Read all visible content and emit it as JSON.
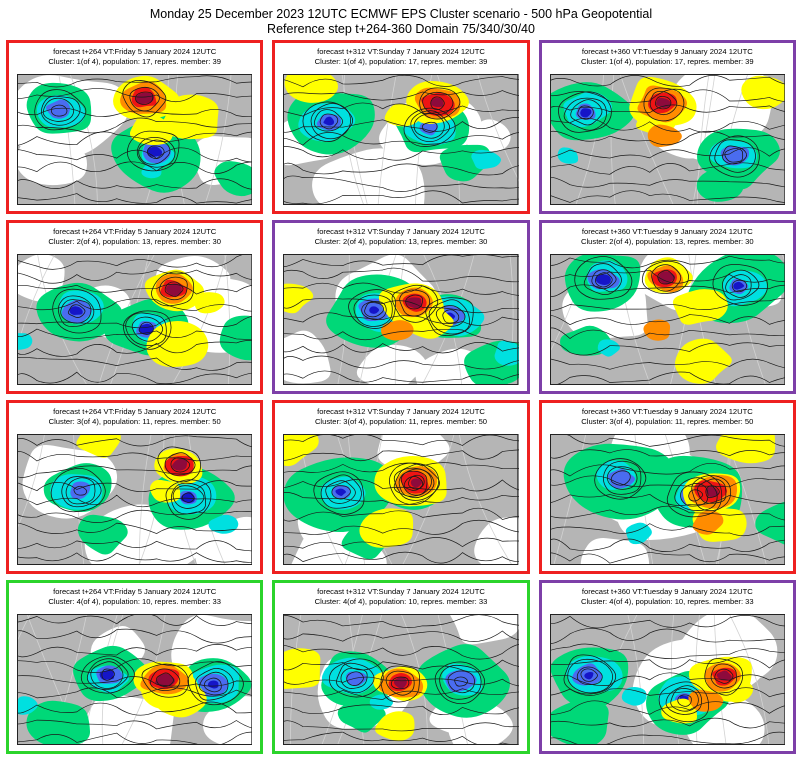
{
  "title": {
    "line1": "Monday 25 December 2023 12UTC ECMWF EPS Cluster scenario - 500 hPa Geopotential",
    "line2": "Reference step t+264-360 Domain 75/340/30/40"
  },
  "panels": [
    {
      "forecast_line": "forecast t+264 VT:Friday 5 January 2024 12UTC",
      "cluster_line": "Cluster: 1(of 4), population: 17, repres. member: 39",
      "border_color": "#ee2020"
    },
    {
      "forecast_line": "forecast t+312 VT:Sunday 7 January 2024 12UTC",
      "cluster_line": "Cluster: 1(of 4), population: 17, repres. member: 39",
      "border_color": "#ee2020"
    },
    {
      "forecast_line": "forecast t+360 VT:Tuesday 9 January 2024 12UTC",
      "cluster_line": "Cluster: 1(of 4), population: 17, repres. member: 39",
      "border_color": "#7d3fa8"
    },
    {
      "forecast_line": "forecast t+264 VT:Friday 5 January 2024 12UTC",
      "cluster_line": "Cluster: 2(of 4), population: 13, repres. member: 30",
      "border_color": "#ee2020"
    },
    {
      "forecast_line": "forecast t+312 VT:Sunday 7 January 2024 12UTC",
      "cluster_line": "Cluster: 2(of 4), population: 13, repres. member: 30",
      "border_color": "#7d3fa8"
    },
    {
      "forecast_line": "forecast t+360 VT:Tuesday 9 January 2024 12UTC",
      "cluster_line": "Cluster: 2(of 4), population: 13, repres. member: 30",
      "border_color": "#7d3fa8"
    },
    {
      "forecast_line": "forecast t+264 VT:Friday 5 January 2024 12UTC",
      "cluster_line": "Cluster: 3(of 4), population: 11, repres. member: 50",
      "border_color": "#ee2020"
    },
    {
      "forecast_line": "forecast t+312 VT:Sunday 7 January 2024 12UTC",
      "cluster_line": "Cluster: 3(of 4), population: 11, repres. member: 50",
      "border_color": "#ee2020"
    },
    {
      "forecast_line": "forecast t+360 VT:Tuesday 9 January 2024 12UTC",
      "cluster_line": "Cluster: 3(of 4), population: 11, repres. member: 50",
      "border_color": "#ee2020"
    },
    {
      "forecast_line": "forecast t+264 VT:Friday 5 January 2024 12UTC",
      "cluster_line": "Cluster: 4(of 4), population: 10, repres. member: 33",
      "border_color": "#2bd42b"
    },
    {
      "forecast_line": "forecast t+312 VT:Sunday 7 January 2024 12UTC",
      "cluster_line": "Cluster: 4(of 4), population: 10, repres. member: 33",
      "border_color": "#2bd42b"
    },
    {
      "forecast_line": "forecast t+360 VT:Tuesday 9 January 2024 12UTC",
      "cluster_line": "Cluster: 4(of 4), population: 10, repres. member: 33",
      "border_color": "#7d3fa8"
    }
  ],
  "map_palette": {
    "land_gray": "#b5b5b5",
    "white": "#ffffff",
    "green": "#00d878",
    "cyan": "#00e0e0",
    "blue": "#4a6cf0",
    "navy": "#1515c8",
    "yellow": "#ffff00",
    "orange": "#ff8c00",
    "red": "#ee1414",
    "maroon": "#8e0a3c",
    "contour": "#1a1a1a",
    "graticule": "#d2d2d2"
  }
}
